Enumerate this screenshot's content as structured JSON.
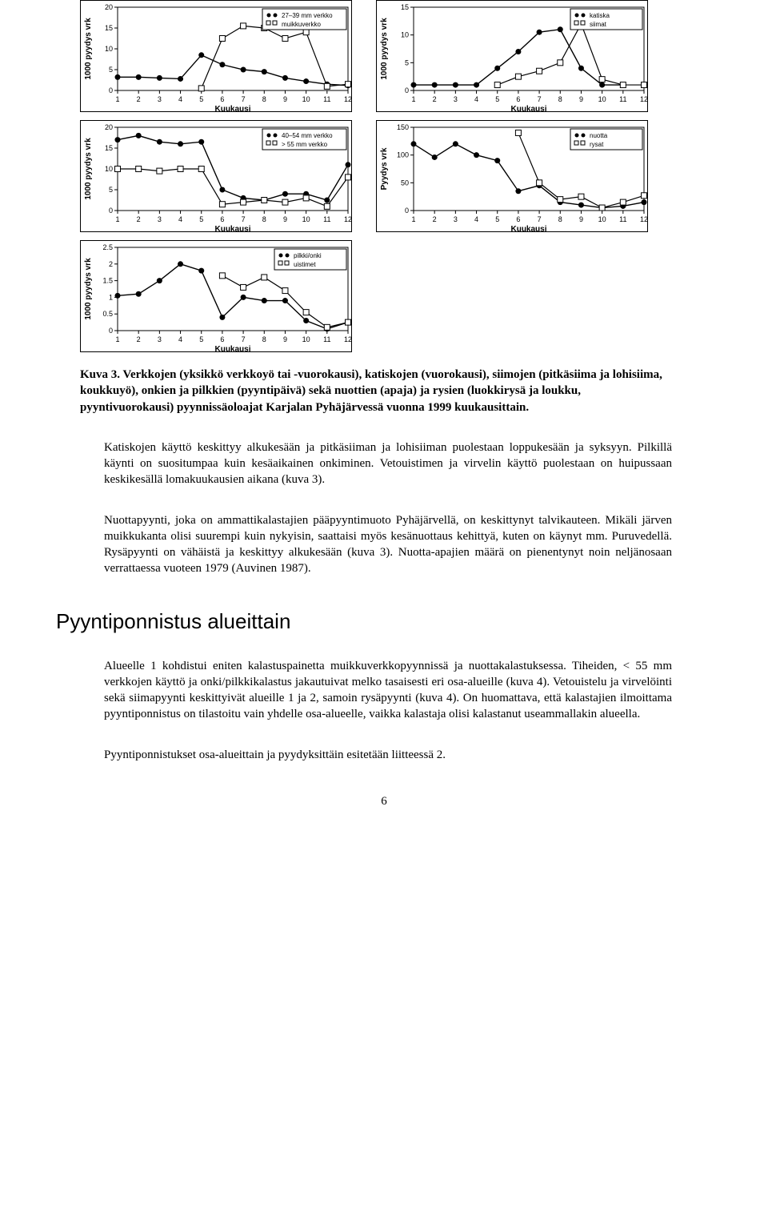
{
  "charts": {
    "x_label": "Kuukausi",
    "y_label_1000": "1000 pyydys vrk",
    "y_label_pyydys": "Pyydys vrk",
    "x_ticks": [
      1,
      2,
      3,
      4,
      5,
      6,
      7,
      8,
      9,
      10,
      11,
      12
    ],
    "topleft": {
      "ymax": 20,
      "yticks": [
        0,
        5,
        10,
        15,
        20
      ],
      "legend": [
        "27–39 mm verkko",
        "muikkuverkko"
      ],
      "series1": [
        3.2,
        3.2,
        3,
        2.8,
        8.5,
        6.2,
        5,
        4.5,
        3,
        2.2,
        1.5,
        1.2
      ],
      "series2": [
        null,
        null,
        null,
        null,
        0.5,
        12.5,
        15.5,
        15,
        12.5,
        14,
        1,
        1.5
      ]
    },
    "topright": {
      "ymax": 15,
      "yticks": [
        0,
        5,
        10,
        15
      ],
      "legend": [
        "katiska",
        "siimat"
      ],
      "series1": [
        1,
        1,
        1,
        1,
        4,
        7,
        10.5,
        11,
        4,
        1,
        1,
        null
      ],
      "series2": [
        null,
        null,
        null,
        null,
        1,
        2.5,
        3.5,
        5,
        12,
        2,
        1,
        1
      ]
    },
    "midleft": {
      "ymax": 20,
      "yticks": [
        0,
        5,
        10,
        15,
        20
      ],
      "legend": [
        "40–54 mm verkko",
        "> 55 mm verkko"
      ],
      "series1": [
        17,
        18,
        16.5,
        16,
        16.5,
        5,
        3,
        2.5,
        4,
        4,
        2.5,
        11
      ],
      "series2": [
        10,
        10,
        9.5,
        10,
        10,
        1.5,
        2,
        2.5,
        2,
        3,
        1,
        8
      ]
    },
    "midright": {
      "ymax": 150,
      "yticks": [
        0,
        50,
        100,
        150
      ],
      "legend": [
        "nuotta",
        "rysat"
      ],
      "series1": [
        120,
        96,
        120,
        100,
        90,
        35,
        45,
        15,
        10,
        5,
        8,
        15
      ],
      "series2": [
        null,
        null,
        null,
        null,
        null,
        140,
        50,
        20,
        25,
        5,
        15,
        27
      ]
    },
    "bottomleft": {
      "ymax": 2.5,
      "yticks": [
        0.0,
        0.5,
        1.0,
        1.5,
        2.0,
        2.5
      ],
      "legend": [
        "pilkki/onki",
        "uistimet"
      ],
      "series1": [
        1.05,
        1.1,
        1.5,
        2.0,
        1.8,
        0.4,
        1.0,
        0.9,
        0.9,
        0.3,
        0.05,
        0.25
      ],
      "series2": [
        null,
        null,
        null,
        null,
        null,
        1.65,
        1.3,
        1.6,
        1.2,
        0.55,
        0.1,
        0.25
      ]
    }
  },
  "caption": "Kuva 3. Verkkojen (yksikkö verkkoyö tai -vuorokausi), katiskojen (vuorokausi), siimojen (pitkäsiima ja lohisiima, koukkuyö), onkien ja pilkkien (pyyntipäivä) sekä  nuottien (apaja) ja rysien (luokkirysä ja loukku, pyyntivuorokausi) pyynnissäoloajat Karjalan Pyhäjärvessä vuonna 1999 kuukausittain.",
  "para1": "Katiskojen käyttö keskittyy alkukesään ja pitkäsiiman ja lohisiiman puolestaan loppukesään ja syksyyn. Pilkillä käynti on suositumpaa kuin kesäaikainen onkiminen. Vetouistimen ja virvelin käyttö puolestaan on huipussaan keskikesällä lomakuukausien aikana (kuva 3).",
  "para2": "Nuottapyynti, joka on ammattikalastajien pääpyyntimuoto Pyhäjärvellä, on keskittynyt talvikauteen. Mikäli järven muikkukanta olisi suurempi kuin nykyisin, saattaisi myös kesänuottaus kehittyä, kuten on käynyt mm. Puruvedellä. Rysäpyynti on vähäistä ja keskittyy alkukesään (kuva 3). Nuotta-apajien määrä on pienentynyt noin neljänosaan verrattaessa vuoteen 1979 (Auvinen 1987).",
  "section_heading": "Pyyntiponnistus alueittain",
  "para3": "Alueelle 1 kohdistui eniten kalastuspainetta muikkuverkkopyynnissä  ja nuottakalastuksessa. Tiheiden, < 55 mm  verkkojen käyttö ja onki/pilkkikalastus  jakautuivat melko tasaisesti eri osa-alueille (kuva 4). Vetouistelu ja virvelöinti sekä siimapyynti keskittyivät alueille 1 ja 2, samoin rysäpyynti (kuva 4). On huomattava, että kalastajien ilmoittama pyyntiponnistus on tilastoitu vain yhdelle osa-alueelle, vaikka kalastaja olisi kalastanut useammallakin alueella.",
  "para4": "Pyyntiponnistukset osa-alueittain ja pyydyksittäin esitetään liitteessä 2.",
  "page_number": "6"
}
